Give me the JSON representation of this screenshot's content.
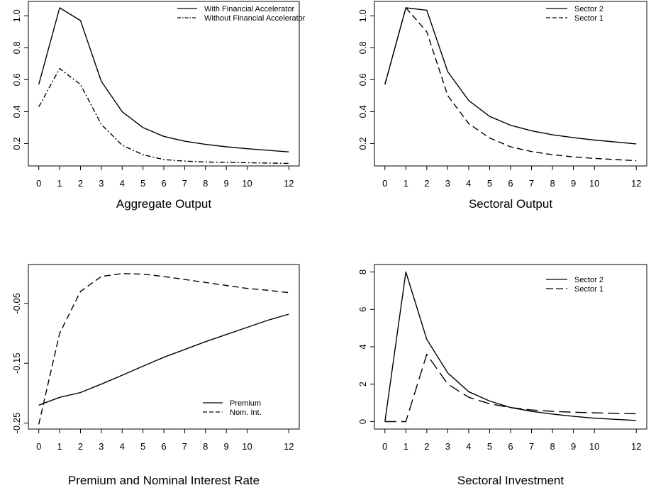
{
  "chart_data": [
    {
      "type": "line",
      "title": "Aggregate Output",
      "xlabel": "",
      "ylabel": "",
      "x": [
        0,
        1,
        2,
        3,
        4,
        5,
        6,
        7,
        8,
        9,
        10,
        11,
        12
      ],
      "xticks": [
        0,
        1,
        2,
        3,
        4,
        5,
        6,
        7,
        8,
        9,
        10,
        12
      ],
      "xlim": [
        -0.5,
        12.5
      ],
      "yticks": [
        0.2,
        0.4,
        0.6,
        0.8,
        1.0
      ],
      "ytick_labels": [
        "0.2",
        "0.4",
        "0.6",
        "0.8",
        "1.0"
      ],
      "ylim": [
        0.06,
        1.09
      ],
      "legend_position": "top-right",
      "series": [
        {
          "name": "With Financial Accelerator",
          "style": "solid",
          "values": [
            0.57,
            1.05,
            0.97,
            0.59,
            0.4,
            0.3,
            0.245,
            0.215,
            0.195,
            0.18,
            0.168,
            0.158,
            0.148
          ]
        },
        {
          "name": "Without Financial Accelerator",
          "style": "dashdot",
          "values": [
            0.43,
            0.67,
            0.57,
            0.32,
            0.19,
            0.13,
            0.1,
            0.09,
            0.085,
            0.082,
            0.08,
            0.078,
            0.076
          ]
        }
      ]
    },
    {
      "type": "line",
      "title": "Sectoral Output",
      "xlabel": "",
      "ylabel": "",
      "x": [
        0,
        1,
        2,
        3,
        4,
        5,
        6,
        7,
        8,
        9,
        10,
        11,
        12
      ],
      "xticks": [
        0,
        1,
        2,
        3,
        4,
        5,
        6,
        7,
        8,
        9,
        10,
        12
      ],
      "xlim": [
        -0.5,
        12.5
      ],
      "yticks": [
        0.2,
        0.4,
        0.6,
        0.8,
        1.0
      ],
      "ytick_labels": [
        "0.2",
        "0.4",
        "0.6",
        "0.8",
        "1.0"
      ],
      "ylim": [
        0.06,
        1.09
      ],
      "legend_position": "top-right",
      "series": [
        {
          "name": "Sector 2",
          "style": "solid",
          "values": [
            0.57,
            1.05,
            1.035,
            0.65,
            0.47,
            0.37,
            0.315,
            0.28,
            0.255,
            0.237,
            0.222,
            0.21,
            0.198
          ]
        },
        {
          "name": "Sector 1",
          "style": "dashed",
          "values": [
            0.57,
            1.05,
            0.9,
            0.5,
            0.325,
            0.235,
            0.18,
            0.15,
            0.13,
            0.117,
            0.107,
            0.1,
            0.093
          ]
        }
      ]
    },
    {
      "type": "line",
      "title": "Premium and Nominal Interest Rate",
      "xlabel": "",
      "ylabel": "",
      "x": [
        0,
        1,
        2,
        3,
        4,
        5,
        6,
        7,
        8,
        9,
        10,
        11,
        12
      ],
      "xticks": [
        0,
        1,
        2,
        3,
        4,
        5,
        6,
        7,
        8,
        9,
        10,
        12
      ],
      "xlim": [
        -0.5,
        12.5
      ],
      "yticks": [
        -0.05,
        -0.15,
        -0.25
      ],
      "ytick_labels": [
        "-0.05",
        "-0.15",
        "-0.25"
      ],
      "ylim": [
        -0.26,
        0.015
      ],
      "legend_position": "bottom-right",
      "series": [
        {
          "name": "Premium",
          "style": "solid",
          "values": [
            -0.22,
            -0.207,
            -0.199,
            -0.185,
            -0.17,
            -0.155,
            -0.14,
            -0.127,
            -0.114,
            -0.102,
            -0.09,
            -0.078,
            -0.068
          ]
        },
        {
          "name": "Nom. Int.",
          "style": "dashed",
          "values": [
            -0.252,
            -0.1,
            -0.03,
            -0.005,
            0.0,
            -0.001,
            -0.005,
            -0.01,
            -0.015,
            -0.02,
            -0.025,
            -0.028,
            -0.032
          ]
        }
      ]
    },
    {
      "type": "line",
      "title": "Sectoral Investment",
      "xlabel": "",
      "ylabel": "",
      "x": [
        0,
        1,
        2,
        3,
        4,
        5,
        6,
        7,
        8,
        9,
        10,
        11,
        12
      ],
      "xticks": [
        0,
        1,
        2,
        3,
        4,
        5,
        6,
        7,
        8,
        9,
        10,
        12
      ],
      "xlim": [
        -0.5,
        12.5
      ],
      "yticks": [
        0,
        2,
        4,
        6,
        8
      ],
      "ytick_labels": [
        "0",
        "2",
        "4",
        "6",
        "8"
      ],
      "ylim": [
        -0.4,
        8.4
      ],
      "legend_position": "top-right",
      "series": [
        {
          "name": "Sector 2",
          "style": "solid",
          "values": [
            0.0,
            8.0,
            4.4,
            2.6,
            1.6,
            1.1,
            0.75,
            0.55,
            0.4,
            0.28,
            0.18,
            0.12,
            0.06
          ]
        },
        {
          "name": "Sector 1",
          "style": "longdash",
          "values": [
            0.0,
            0.0,
            3.6,
            2.0,
            1.3,
            0.95,
            0.75,
            0.62,
            0.55,
            0.5,
            0.47,
            0.44,
            0.42
          ]
        }
      ]
    }
  ]
}
